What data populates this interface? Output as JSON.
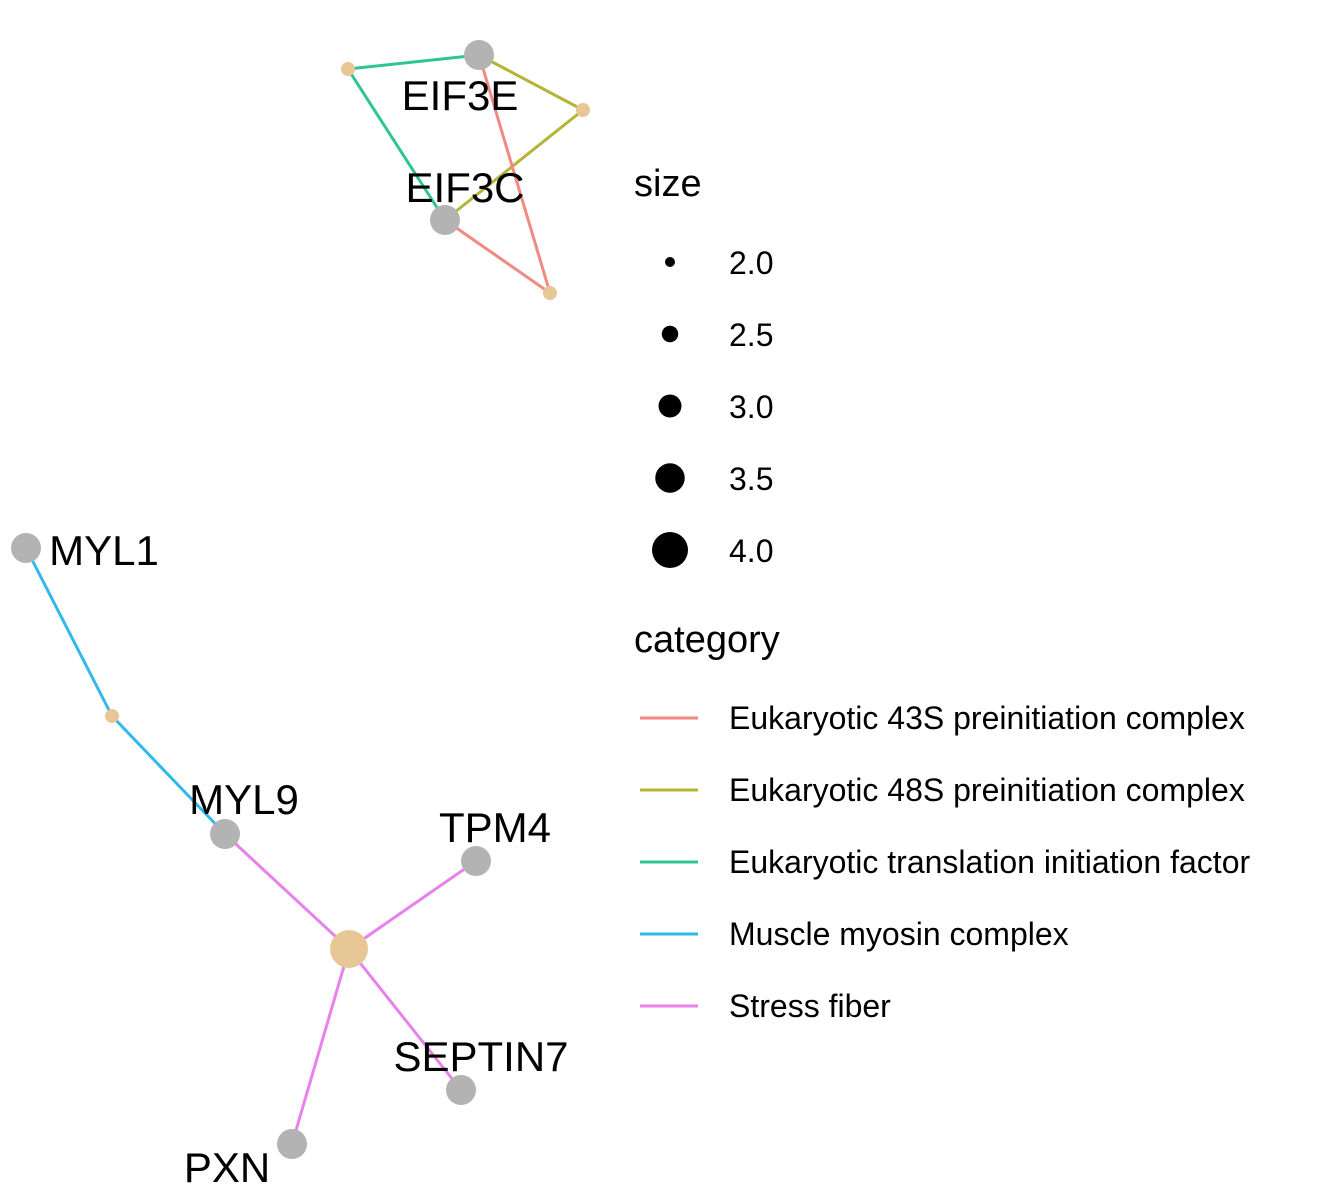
{
  "colors": {
    "gene_node": "#b3b3b3",
    "category_node": "#e8c797",
    "legend_point": "#000000"
  },
  "categories": [
    {
      "id": "c43s",
      "name": "Eukaryotic 43S preinitiation complex",
      "color": "#f08a82"
    },
    {
      "id": "c48s",
      "name": "Eukaryotic 48S preinitiation complex",
      "color": "#b5b437"
    },
    {
      "id": "celf",
      "name": "Eukaryotic translation initiation factor",
      "color": "#2ec494"
    },
    {
      "id": "cmyo",
      "name": "Muscle myosin complex",
      "color": "#33b8ec"
    },
    {
      "id": "cstr",
      "name": "Stress fiber",
      "color": "#e882ea"
    }
  ],
  "genes": [
    {
      "id": "EIF3E",
      "label": "EIF3E"
    },
    {
      "id": "EIF3C",
      "label": "EIF3C"
    },
    {
      "id": "MYL1",
      "label": "MYL1"
    },
    {
      "id": "MYL9",
      "label": "MYL9"
    },
    {
      "id": "TPM4",
      "label": "TPM4"
    },
    {
      "id": "SEPTIN7",
      "label": "SEPTIN7"
    },
    {
      "id": "PXN",
      "label": "PXN"
    }
  ],
  "edges": [
    {
      "category": "celf",
      "gene": "EIF3E"
    },
    {
      "category": "celf",
      "gene": "EIF3C"
    },
    {
      "category": "c48s",
      "gene": "EIF3E"
    },
    {
      "category": "c48s",
      "gene": "EIF3C"
    },
    {
      "category": "c43s",
      "gene": "EIF3E"
    },
    {
      "category": "c43s",
      "gene": "EIF3C"
    },
    {
      "category": "cmyo",
      "gene": "MYL1"
    },
    {
      "category": "cmyo",
      "gene": "MYL9"
    },
    {
      "category": "cstr",
      "gene": "MYL9"
    },
    {
      "category": "cstr",
      "gene": "TPM4"
    },
    {
      "category": "cstr",
      "gene": "SEPTIN7"
    },
    {
      "category": "cstr",
      "gene": "PXN"
    }
  ],
  "legend": {
    "size_title": "size",
    "size_items": [
      {
        "label": "2.0",
        "value": 2.0
      },
      {
        "label": "2.5",
        "value": 2.5
      },
      {
        "label": "3.0",
        "value": 3.0
      },
      {
        "label": "3.5",
        "value": 3.5
      },
      {
        "label": "4.0",
        "value": 4.0
      }
    ],
    "category_title": "category"
  }
}
